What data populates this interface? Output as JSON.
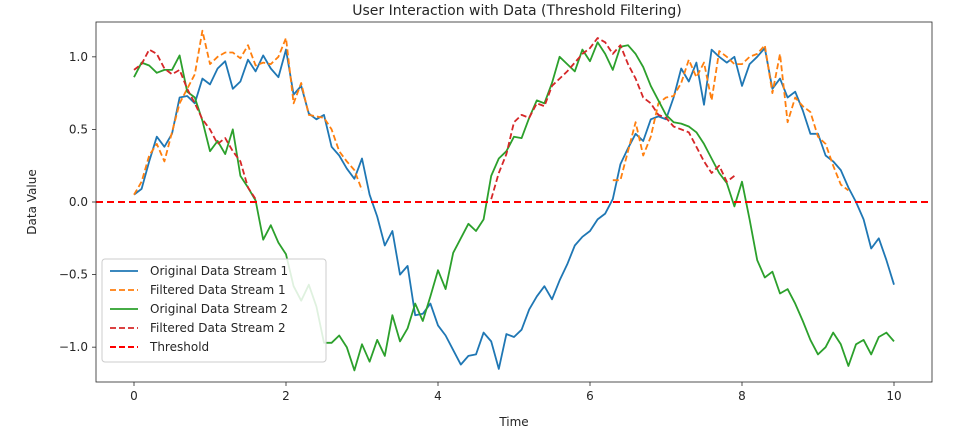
{
  "chart_data": {
    "type": "line",
    "title": "User Interaction with Data (Threshold Filtering)",
    "xlabel": "Time",
    "ylabel": "Data Value",
    "xlim": [
      -0.5,
      10.5
    ],
    "ylim": [
      -1.24,
      1.24
    ],
    "x_ticks": [
      0,
      2,
      4,
      6,
      8,
      10
    ],
    "y_ticks": [
      -1.0,
      -0.5,
      0.0,
      0.5,
      1.0
    ],
    "y_tick_labels": [
      "−1.0",
      "−0.5",
      "0.0",
      "0.5",
      "1.0"
    ],
    "threshold": 0.0,
    "legend_placement": "lower-left",
    "grid": false,
    "series": [
      {
        "name": "Original Data Stream 1",
        "color": "#1f77b4",
        "style": "solid",
        "x": [
          0,
          0.1,
          0.2,
          0.3,
          0.4,
          0.5,
          0.6,
          0.7,
          0.8,
          0.9,
          1.0,
          1.1,
          1.2,
          1.3,
          1.4,
          1.5,
          1.6,
          1.7,
          1.8,
          1.9,
          2.0,
          2.1,
          2.2,
          2.3,
          2.4,
          2.5,
          2.6,
          2.7,
          2.8,
          2.9,
          3.0,
          3.1,
          3.2,
          3.3,
          3.4,
          3.5,
          3.6,
          3.7,
          3.8,
          3.9,
          4.0,
          4.1,
          4.2,
          4.3,
          4.4,
          4.5,
          4.6,
          4.7,
          4.8,
          4.9,
          5.0,
          5.1,
          5.2,
          5.3,
          5.4,
          5.5,
          5.6,
          5.7,
          5.8,
          5.9,
          6.0,
          6.1,
          6.2,
          6.3,
          6.4,
          6.5,
          6.6,
          6.7,
          6.8,
          6.9,
          7.0,
          7.1,
          7.2,
          7.3,
          7.4,
          7.5,
          7.6,
          7.7,
          7.8,
          7.9,
          8.0,
          8.1,
          8.2,
          8.3,
          8.4,
          8.5,
          8.6,
          8.7,
          8.8,
          8.9,
          9.0,
          9.1,
          9.2,
          9.3,
          9.4,
          9.5,
          9.6,
          9.7,
          9.8,
          9.9,
          10.0
        ],
        "y": [
          0.05,
          0.09,
          0.28,
          0.45,
          0.38,
          0.47,
          0.72,
          0.73,
          0.68,
          0.85,
          0.81,
          0.92,
          0.97,
          0.78,
          0.83,
          0.98,
          0.9,
          1.01,
          0.92,
          0.86,
          1.05,
          0.74,
          0.8,
          0.61,
          0.57,
          0.6,
          0.38,
          0.32,
          0.23,
          0.16,
          0.3,
          0.05,
          -0.1,
          -0.3,
          -0.2,
          -0.5,
          -0.44,
          -0.78,
          -0.77,
          -0.7,
          -0.85,
          -0.92,
          -1.02,
          -1.12,
          -1.06,
          -1.05,
          -0.9,
          -0.96,
          -1.15,
          -0.91,
          -0.93,
          -0.88,
          -0.74,
          -0.65,
          -0.58,
          -0.67,
          -0.54,
          -0.43,
          -0.3,
          -0.24,
          -0.2,
          -0.12,
          -0.08,
          0.02,
          0.26,
          0.37,
          0.47,
          0.42,
          0.57,
          0.59,
          0.57,
          0.72,
          0.92,
          0.83,
          0.96,
          0.67,
          1.05,
          1.0,
          0.96,
          1.0,
          0.8,
          0.95,
          1.0,
          1.06,
          0.78,
          0.85,
          0.72,
          0.76,
          0.63,
          0.47,
          0.47,
          0.32,
          0.28,
          0.22,
          0.1,
          0.0,
          -0.12,
          -0.32,
          -0.25,
          -0.4,
          -0.57
        ]
      },
      {
        "name": "Filtered Data Stream 1",
        "color": "#ff7f0e",
        "style": "dashed",
        "x": [
          0,
          0.1,
          0.2,
          0.3,
          0.4,
          0.5,
          0.6,
          0.7,
          0.8,
          0.9,
          1.0,
          1.1,
          1.2,
          1.3,
          1.4,
          1.5,
          1.6,
          1.7,
          1.8,
          1.9,
          2.0,
          2.1,
          2.2,
          2.3,
          2.4,
          2.5,
          2.6,
          2.7,
          2.8,
          2.9,
          3.0,
          null,
          6.3,
          6.4,
          6.5,
          6.6,
          6.7,
          6.8,
          6.9,
          7.0,
          7.1,
          7.2,
          7.3,
          7.4,
          7.5,
          7.6,
          7.7,
          7.8,
          7.9,
          8.0,
          8.1,
          8.2,
          8.3,
          8.4,
          8.5,
          8.6,
          8.7,
          8.8,
          8.9,
          9.0,
          9.1,
          9.2,
          9.3,
          9.4
        ],
        "y": [
          0.05,
          0.14,
          0.32,
          0.4,
          0.28,
          0.48,
          0.68,
          0.78,
          0.88,
          1.18,
          0.95,
          1.0,
          1.03,
          1.03,
          0.99,
          1.08,
          0.94,
          0.96,
          0.95,
          1.0,
          1.13,
          0.68,
          0.82,
          0.6,
          0.59,
          0.58,
          0.5,
          0.35,
          0.28,
          0.22,
          0.08,
          null,
          0.15,
          0.15,
          0.35,
          0.55,
          0.32,
          0.45,
          0.68,
          0.72,
          0.73,
          0.82,
          0.98,
          0.86,
          0.96,
          0.7,
          1.04,
          1.0,
          0.95,
          0.95,
          1.0,
          1.02,
          1.08,
          0.75,
          1.02,
          0.55,
          0.72,
          0.66,
          0.62,
          0.45,
          0.4,
          0.25,
          0.12,
          0.08
        ]
      },
      {
        "name": "Original Data Stream 2",
        "color": "#2ca02c",
        "style": "solid",
        "x": [
          0,
          0.1,
          0.2,
          0.3,
          0.4,
          0.5,
          0.6,
          0.7,
          0.8,
          0.9,
          1.0,
          1.1,
          1.2,
          1.3,
          1.4,
          1.5,
          1.6,
          1.7,
          1.8,
          1.9,
          2.0,
          2.1,
          2.2,
          2.3,
          2.4,
          2.5,
          2.6,
          2.7,
          2.8,
          2.9,
          3.0,
          3.1,
          3.2,
          3.3,
          3.4,
          3.5,
          3.6,
          3.7,
          3.8,
          3.9,
          4.0,
          4.1,
          4.2,
          4.3,
          4.4,
          4.5,
          4.6,
          4.7,
          4.8,
          4.9,
          5.0,
          5.1,
          5.2,
          5.3,
          5.4,
          5.5,
          5.6,
          5.7,
          5.8,
          5.9,
          6.0,
          6.1,
          6.2,
          6.3,
          6.4,
          6.5,
          6.6,
          6.7,
          6.8,
          6.9,
          7.0,
          7.1,
          7.2,
          7.3,
          7.4,
          7.5,
          7.6,
          7.7,
          7.8,
          7.9,
          8.0,
          8.1,
          8.2,
          8.3,
          8.4,
          8.5,
          8.6,
          8.7,
          8.8,
          8.9,
          9.0,
          9.1,
          9.2,
          9.3,
          9.4,
          9.5,
          9.6,
          9.7,
          9.8,
          9.9,
          10.0
        ],
        "y": [
          0.86,
          0.96,
          0.94,
          0.89,
          0.91,
          0.91,
          1.01,
          0.76,
          0.72,
          0.56,
          0.35,
          0.42,
          0.33,
          0.5,
          0.18,
          0.1,
          0.01,
          -0.26,
          -0.16,
          -0.28,
          -0.36,
          -0.58,
          -0.68,
          -0.57,
          -0.72,
          -0.97,
          -0.97,
          -0.92,
          -1.0,
          -1.16,
          -0.98,
          -1.1,
          -0.95,
          -1.06,
          -0.78,
          -0.96,
          -0.87,
          -0.7,
          -0.82,
          -0.65,
          -0.47,
          -0.6,
          -0.35,
          -0.25,
          -0.15,
          -0.2,
          -0.12,
          0.18,
          0.3,
          0.35,
          0.45,
          0.44,
          0.58,
          0.7,
          0.68,
          0.82,
          1.0,
          0.95,
          0.9,
          1.05,
          0.97,
          1.1,
          1.02,
          0.91,
          1.07,
          1.08,
          1.02,
          0.93,
          0.8,
          0.7,
          0.6,
          0.55,
          0.54,
          0.52,
          0.48,
          0.4,
          0.3,
          0.2,
          0.13,
          -0.03,
          0.14,
          -0.12,
          -0.4,
          -0.52,
          -0.48,
          -0.63,
          -0.6,
          -0.7,
          -0.82,
          -0.95,
          -1.05,
          -1.0,
          -0.9,
          -0.98,
          -1.13,
          -0.98,
          -0.95,
          -1.05,
          -0.93,
          -0.9,
          -0.96
        ]
      },
      {
        "name": "Filtered Data Stream 2",
        "color": "#d62728",
        "style": "dashed",
        "x": [
          0,
          0.1,
          0.2,
          0.3,
          0.4,
          0.5,
          0.6,
          0.7,
          0.8,
          0.9,
          1.0,
          1.1,
          1.2,
          1.3,
          1.4,
          1.5,
          1.6,
          null,
          4.7,
          4.8,
          4.9,
          5.0,
          5.1,
          5.2,
          5.3,
          5.4,
          5.5,
          5.6,
          5.7,
          5.8,
          5.9,
          6.0,
          6.1,
          6.2,
          6.3,
          6.4,
          6.5,
          6.6,
          6.7,
          6.8,
          6.9,
          7.0,
          7.1,
          7.2,
          7.3,
          7.4,
          7.5,
          7.6,
          7.7,
          7.8,
          7.9
        ],
        "y": [
          0.91,
          0.95,
          1.05,
          1.02,
          0.92,
          0.88,
          0.91,
          0.78,
          0.68,
          0.57,
          0.5,
          0.4,
          0.44,
          0.35,
          0.28,
          0.1,
          0.02,
          null,
          0.02,
          0.2,
          0.33,
          0.55,
          0.6,
          0.58,
          0.68,
          0.66,
          0.8,
          0.85,
          0.9,
          0.96,
          1.02,
          1.06,
          1.13,
          1.1,
          1.02,
          1.08,
          0.95,
          0.85,
          0.72,
          0.68,
          0.6,
          0.58,
          0.52,
          0.5,
          0.48,
          0.38,
          0.28,
          0.2,
          0.25,
          0.14,
          0.18
        ]
      }
    ],
    "threshold_line": {
      "name": "Threshold",
      "color": "#ff0000",
      "style": "dashed"
    }
  }
}
